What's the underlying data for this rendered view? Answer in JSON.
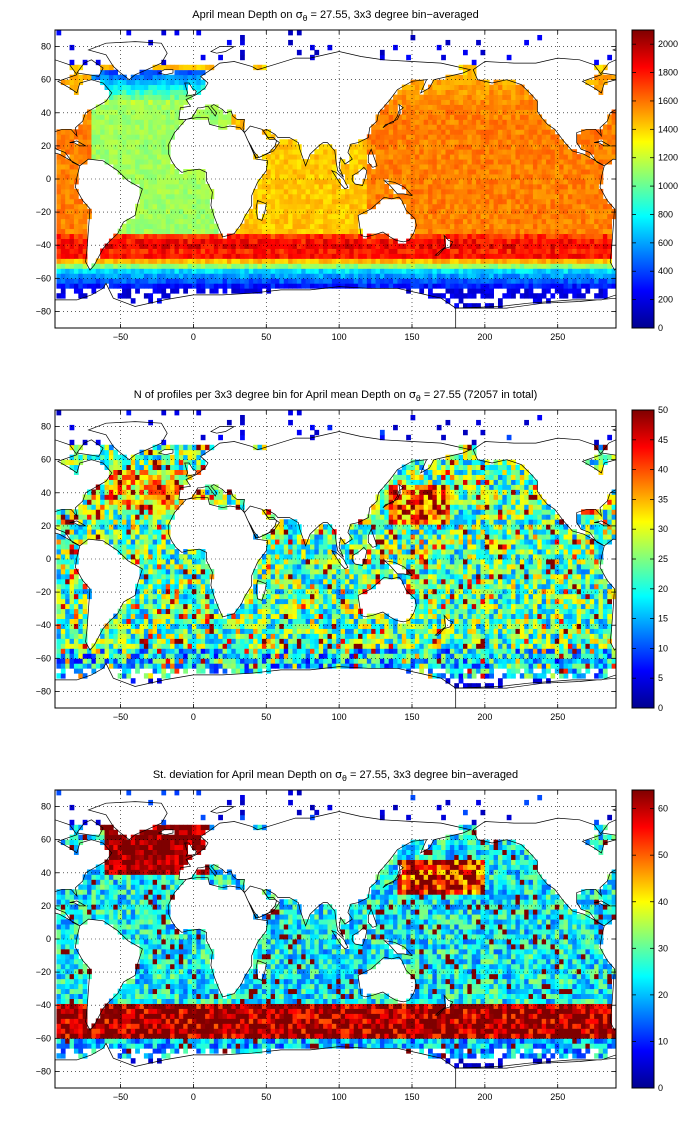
{
  "colormap": [
    "#00008f",
    "#0000ff",
    "#007fff",
    "#00ffff",
    "#7fff7f",
    "#ffff00",
    "#ff7f00",
    "#ff0000",
    "#7f0000"
  ],
  "land_color": "#ffffff",
  "coast_color": "#000000",
  "chart_data": [
    {
      "type": "heatmap",
      "title_prefix": "April mean Depth on ",
      "title_symbol": "σ",
      "title_subscript": "θ",
      "title_suffix": " = 27.55, 3x3 degree bin−averaged",
      "xlim": [
        -95,
        290
      ],
      "ylim": [
        -90,
        90
      ],
      "xticks": [
        -50,
        0,
        50,
        100,
        150,
        200,
        250
      ],
      "yticks": [
        -80,
        -60,
        -40,
        -20,
        0,
        20,
        40,
        60,
        80
      ],
      "grid": true,
      "clim": [
        0,
        2100
      ],
      "cticks": [
        0,
        200,
        400,
        600,
        800,
        1000,
        1200,
        1400,
        1600,
        1800,
        2000
      ],
      "bin_size_deg": 3,
      "field": "depth"
    },
    {
      "type": "heatmap",
      "title_prefix": "N of profiles per 3x3 degree bin for April mean Depth on ",
      "title_symbol": "σ",
      "title_subscript": "θ",
      "title_suffix": " = 27.55 (72057 in total)",
      "xlim": [
        -95,
        290
      ],
      "ylim": [
        -90,
        90
      ],
      "xticks": [
        -50,
        0,
        50,
        100,
        150,
        200,
        250
      ],
      "yticks": [
        -80,
        -60,
        -40,
        -20,
        0,
        20,
        40,
        60,
        80
      ],
      "grid": true,
      "clim": [
        0,
        50
      ],
      "cticks": [
        0,
        5,
        10,
        15,
        20,
        25,
        30,
        35,
        40,
        45,
        50
      ],
      "bin_size_deg": 3,
      "field": "count"
    },
    {
      "type": "heatmap",
      "title_prefix": "St. deviation for April mean Depth on ",
      "title_symbol": "σ",
      "title_subscript": "θ",
      "title_suffix": " = 27.55, 3x3 degree bin−averaged",
      "xlim": [
        -95,
        290
      ],
      "ylim": [
        -90,
        90
      ],
      "xticks": [
        -50,
        0,
        50,
        100,
        150,
        200,
        250
      ],
      "yticks": [
        -80,
        -60,
        -40,
        -20,
        0,
        20,
        40,
        60,
        80
      ],
      "grid": true,
      "clim": [
        0,
        64
      ],
      "cticks": [
        0,
        10,
        20,
        30,
        40,
        50,
        60
      ],
      "bin_size_deg": 3,
      "field": "std"
    }
  ]
}
